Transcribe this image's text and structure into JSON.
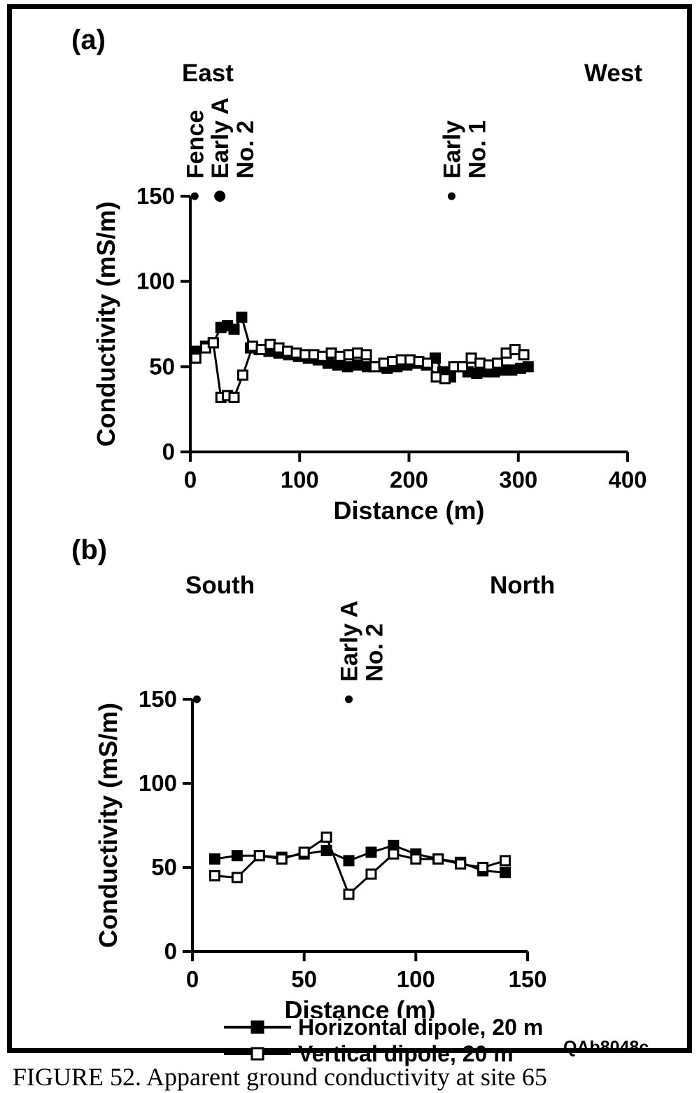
{
  "figure": {
    "caption": "FIGURE 52. Apparent ground conductivity at site 65",
    "watermark": "QAb8048c"
  },
  "colors": {
    "ink": "#000000",
    "paper": "#ffffff"
  },
  "legend": {
    "items": [
      {
        "label": "Horizontal dipole, 20 m",
        "marker": "filled-square",
        "marker_fill": "#000000"
      },
      {
        "label": "Vertical dipole, 20 m",
        "marker": "open-square",
        "marker_fill": "#ffffff"
      }
    ]
  },
  "chart_data": [
    {
      "id": "a",
      "type": "line",
      "panel_label": "(a)",
      "left_label": "East",
      "right_label": "West",
      "xlabel": "Distance (m)",
      "ylabel": "Conductivity (mS/m)",
      "xlim": [
        0,
        400
      ],
      "ylim": [
        0,
        150
      ],
      "xticks": [
        0,
        100,
        200,
        300,
        400
      ],
      "yticks": [
        0,
        50,
        100,
        150
      ],
      "grid": false,
      "annotations": [
        {
          "x": 4,
          "dot": "small",
          "label": "Fence"
        },
        {
          "x": 27,
          "dot": "large",
          "label": "Early A\nNo. 2"
        },
        {
          "x": 239,
          "dot": "small",
          "label": "Early\nNo. 1"
        }
      ],
      "series": [
        {
          "name": "Horizontal dipole, 20 m",
          "marker": "filled",
          "x": [
            5,
            14,
            21,
            28,
            34,
            40,
            47,
            55,
            63,
            72,
            81,
            90,
            99,
            108,
            117,
            126,
            135,
            144,
            153,
            162,
            171,
            180,
            189,
            198,
            207,
            216,
            224,
            231,
            238,
            246,
            254,
            262,
            270,
            278,
            286,
            294,
            302,
            309
          ],
          "y": [
            59,
            62,
            64,
            73,
            74,
            72,
            79,
            61,
            60,
            59,
            58,
            57,
            56,
            55,
            54,
            52,
            51,
            50,
            51,
            50,
            50,
            49,
            50,
            51,
            52,
            51,
            55,
            47,
            44,
            50,
            47,
            46,
            47,
            47,
            48,
            48,
            49,
            50
          ]
        },
        {
          "name": "Vertical dipole, 20 m",
          "marker": "open",
          "x": [
            5,
            14,
            21,
            28,
            34,
            40,
            48,
            57,
            65,
            73,
            81,
            89,
            97,
            105,
            113,
            121,
            129,
            137,
            145,
            153,
            161,
            169,
            177,
            185,
            193,
            201,
            209,
            217,
            225,
            233,
            241,
            249,
            257,
            265,
            273,
            281,
            289,
            297,
            305
          ],
          "y": [
            55,
            61,
            64,
            32,
            33,
            32,
            45,
            62,
            60,
            63,
            61,
            59,
            58,
            57,
            57,
            56,
            58,
            56,
            57,
            58,
            57,
            50,
            52,
            53,
            54,
            54,
            53,
            52,
            44,
            43,
            50,
            50,
            55,
            52,
            51,
            52,
            58,
            60,
            57
          ]
        }
      ]
    },
    {
      "id": "b",
      "type": "line",
      "panel_label": "(b)",
      "left_label": "South",
      "right_label": "North",
      "xlabel": "Distance (m)",
      "ylabel": "Conductivity (mS/m)",
      "xlim": [
        0,
        150
      ],
      "ylim": [
        0,
        150
      ],
      "xticks": [
        0,
        50,
        100,
        150
      ],
      "yticks": [
        0,
        50,
        100,
        150
      ],
      "grid": false,
      "annotations": [
        {
          "x": 2,
          "dot": "small",
          "label": ""
        },
        {
          "x": 70,
          "dot": "small",
          "label": "Early A\nNo. 2"
        }
      ],
      "series": [
        {
          "name": "Horizontal dipole, 20 m",
          "marker": "filled",
          "x": [
            10,
            20,
            30,
            40,
            50,
            60,
            70,
            80,
            90,
            100,
            110,
            120,
            130,
            140
          ],
          "y": [
            55,
            57,
            57,
            56,
            58,
            60,
            54,
            59,
            63,
            58,
            55,
            53,
            48,
            47
          ]
        },
        {
          "name": "Vertical dipole, 20 m",
          "marker": "open",
          "x": [
            10,
            20,
            30,
            40,
            50,
            60,
            70,
            80,
            90,
            100,
            110,
            120,
            130,
            140
          ],
          "y": [
            45,
            44,
            57,
            55,
            59,
            68,
            34,
            46,
            58,
            55,
            55,
            52,
            50,
            54
          ]
        }
      ]
    }
  ]
}
